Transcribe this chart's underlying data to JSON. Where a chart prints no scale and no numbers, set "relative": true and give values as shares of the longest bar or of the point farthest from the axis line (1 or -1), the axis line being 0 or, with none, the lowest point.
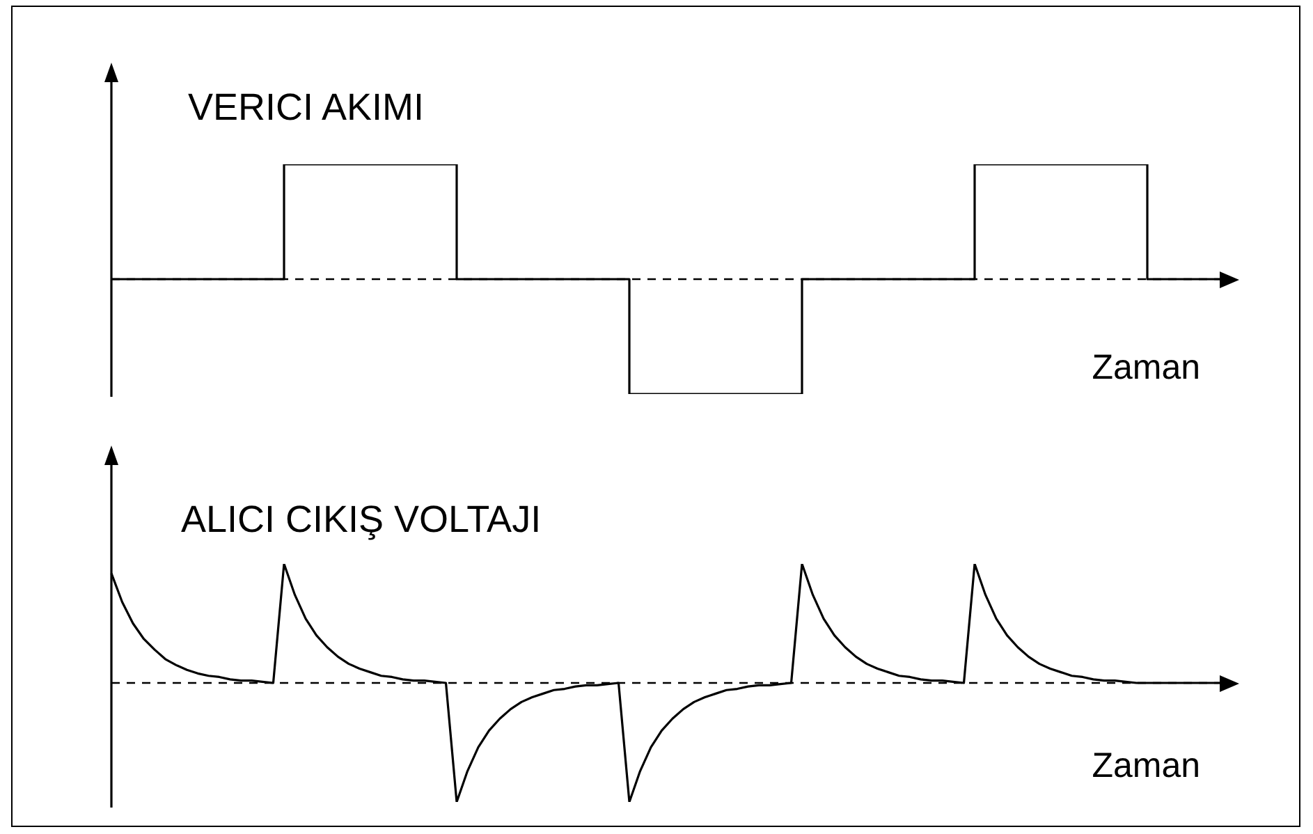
{
  "chart_data": [
    {
      "type": "step",
      "title": "VERICI AKIMI",
      "xlabel": "Zaman",
      "relative": true,
      "ref_lines": [
        {
          "axis": "y",
          "value": 0,
          "color": "#000000",
          "line_style": "dashed"
        }
      ],
      "categories": [
        null,
        null,
        null,
        null,
        null,
        null,
        null,
        null,
        null,
        null,
        null,
        null,
        null,
        null
      ],
      "series": [
        {
          "color": "#000000",
          "values": [
            0,
            0,
            1,
            1,
            0,
            0,
            -1,
            -1,
            0,
            0,
            1,
            1,
            0,
            0
          ]
        }
      ]
    },
    {
      "type": "line",
      "title": "ALICI CIKIŞ VOLTAJI",
      "xlabel": "Zaman",
      "relative": true,
      "ref_lines": [
        {
          "axis": "y",
          "value": 0,
          "color": "#000000",
          "line_style": "dashed"
        }
      ],
      "categories": [
        null,
        null,
        null,
        null,
        null,
        null,
        null,
        null,
        null,
        null,
        null,
        null,
        null,
        null,
        null,
        null,
        null,
        null,
        null,
        null,
        null,
        null,
        null,
        null,
        null,
        null,
        null,
        null,
        null,
        null,
        null,
        null,
        null,
        null,
        null,
        null,
        null,
        null,
        null,
        null,
        null,
        null,
        null,
        null,
        null,
        null,
        null,
        null,
        null,
        null,
        null,
        null,
        null,
        null,
        null,
        null,
        null,
        null,
        null,
        null,
        null,
        null,
        null,
        null,
        null,
        null,
        null,
        null,
        null,
        null,
        null,
        null,
        null,
        null,
        null,
        null,
        null,
        null,
        null,
        null,
        null,
        null,
        null,
        null,
        null,
        null,
        null,
        null,
        null,
        null,
        null,
        null,
        null,
        null,
        null,
        null,
        null,
        null,
        null,
        null,
        null,
        null,
        null,
        null,
        null
      ],
      "series": [
        {
          "color": "#000000",
          "values": [
            0.92,
            0.68,
            0.5,
            0.37,
            0.28,
            0.2,
            0.15,
            0.11,
            0.08,
            0.06,
            0.05,
            0.03,
            0.02,
            0.02,
            0.01,
            0,
            1,
            0.74,
            0.54,
            0.4,
            0.3,
            0.22,
            0.16,
            0.12,
            0.09,
            0.06,
            0.05,
            0.03,
            0.02,
            0.02,
            0.01,
            0,
            -1,
            -0.74,
            -0.54,
            -0.4,
            -0.3,
            -0.22,
            -0.16,
            -0.12,
            -0.09,
            -0.06,
            -0.05,
            -0.03,
            -0.02,
            -0.02,
            -0.01,
            0,
            -1,
            -0.74,
            -0.54,
            -0.4,
            -0.3,
            -0.22,
            -0.16,
            -0.12,
            -0.09,
            -0.06,
            -0.05,
            -0.03,
            -0.02,
            -0.02,
            -0.01,
            0,
            1,
            0.74,
            0.54,
            0.4,
            0.3,
            0.22,
            0.16,
            0.12,
            0.09,
            0.06,
            0.05,
            0.03,
            0.02,
            0.02,
            0.01,
            0,
            1,
            0.74,
            0.54,
            0.4,
            0.3,
            0.22,
            0.16,
            0.12,
            0.09,
            0.06,
            0.05,
            0.03,
            0.02,
            0.02,
            0.01,
            0,
            0,
            0,
            0,
            0,
            0,
            0,
            0,
            0,
            0
          ]
        }
      ]
    }
  ]
}
